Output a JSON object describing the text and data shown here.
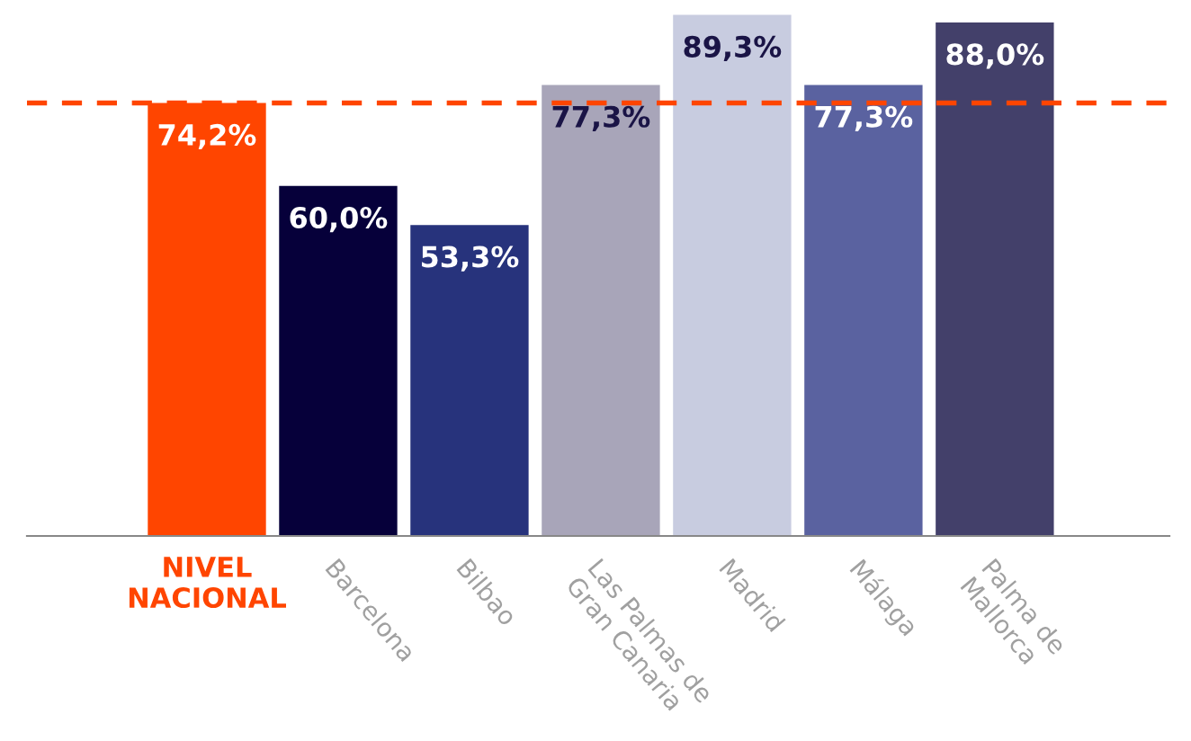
{
  "chart_data": {
    "type": "bar",
    "categories": [
      "NIVEL NACIONAL",
      "Barcelona",
      "Bilbao",
      "Las Palmas de Gran Canaria",
      "Madrid",
      "Málaga",
      "Palma de Mallorca"
    ],
    "values": [
      74.2,
      60.0,
      53.3,
      77.3,
      89.3,
      77.3,
      88.0
    ],
    "value_labels": [
      "74,2%",
      "60,0%",
      "53,3%",
      "77,3%",
      "89,3%",
      "77,3%",
      "88,0%"
    ],
    "colors": [
      "#ff4500",
      "#06003a",
      "#27337c",
      "#a8a5b9",
      "#c8cce0",
      "#5a62a0",
      "#43406a"
    ],
    "ylim": [
      0,
      90
    ],
    "tick_labels": "x",
    "ref_lines": [
      {
        "axis": "y",
        "value": 74.2,
        "color": "#ff4500",
        "line_style": "dashed"
      }
    ],
    "grid": false,
    "legend": false
  }
}
